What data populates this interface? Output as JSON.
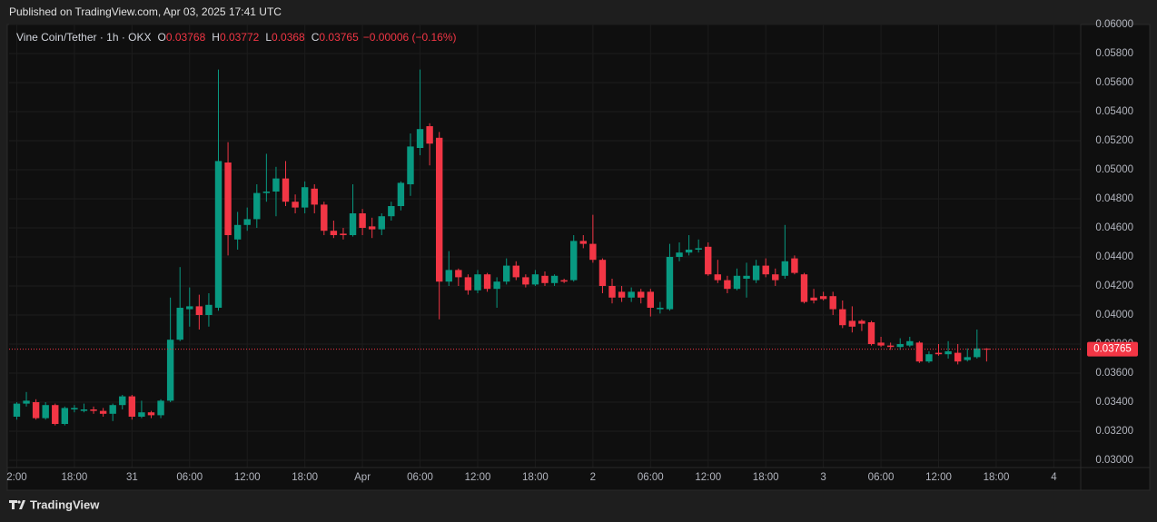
{
  "published": "Published on TradingView.com, Apr 03, 2025 17:41 UTC",
  "brand": "TradingView",
  "chart_data": {
    "type": "candlestick",
    "header": {
      "symbol": "Vine Coin/Tether · 1h · OKX",
      "fields": [
        {
          "label": "O",
          "value": 0.03768
        },
        {
          "label": "H",
          "value": 0.03772
        },
        {
          "label": "L",
          "value": 0.0368
        },
        {
          "label": "C",
          "value": 0.03765
        }
      ],
      "change": "−0.00006 (−0.16%)"
    },
    "up_color": "#089981",
    "down_color": "#f23645",
    "x": [
      0,
      1,
      2,
      3,
      4,
      5,
      6,
      7,
      8,
      9,
      10,
      11,
      12,
      13,
      14,
      15,
      16,
      17,
      18,
      19,
      20,
      21,
      22,
      23,
      24,
      25,
      26,
      27,
      28,
      29,
      30,
      31,
      32,
      33,
      34,
      35,
      36,
      37,
      38,
      39,
      40,
      41,
      42,
      43,
      44,
      45,
      46,
      47,
      48,
      49,
      50,
      51,
      52,
      53,
      54,
      55,
      56,
      57,
      58,
      59,
      60,
      61,
      62,
      63,
      64,
      65,
      66,
      67,
      68,
      69,
      70,
      71,
      72,
      73,
      74,
      75,
      76,
      77,
      78,
      79,
      80,
      81,
      82,
      83,
      84,
      85,
      86,
      87,
      88,
      89,
      90,
      91,
      92,
      93,
      94,
      95,
      96,
      97,
      98,
      99,
      100,
      101
    ],
    "open": [
      0.033,
      0.0339,
      0.034,
      0.0329,
      0.0338,
      0.0325,
      0.0335,
      0.0334,
      0.0335,
      0.0334,
      0.0332,
      0.0338,
      0.0344,
      0.033,
      0.0333,
      0.0331,
      0.0341,
      0.0383,
      0.0404,
      0.0406,
      0.04,
      0.0405,
      0.0505,
      0.0452,
      0.0462,
      0.0466,
      0.0484,
      0.0485,
      0.0494,
      0.0478,
      0.0474,
      0.0487,
      0.0476,
      0.0458,
      0.0456,
      0.0455,
      0.047,
      0.0461,
      0.0459,
      0.0468,
      0.0475,
      0.049,
      0.0515,
      0.053,
      0.0522,
      0.0423,
      0.0431,
      0.0426,
      0.0417,
      0.0428,
      0.0418,
      0.0423,
      0.0434,
      0.0426,
      0.0421,
      0.0427,
      0.0422,
      0.0424,
      0.0424,
      0.0451,
      0.0449,
      0.0438,
      0.042,
      0.0416,
      0.0412,
      0.0416,
      0.0416,
      0.0404,
      0.0404,
      0.044,
      0.0443,
      0.0445,
      0.0447,
      0.0428,
      0.0424,
      0.0418,
      0.0425,
      0.0424,
      0.0434,
      0.0428,
      0.0427,
      0.0439,
      0.0428,
      0.0412,
      0.0413,
      0.0413,
      0.0404,
      0.0396,
      0.0396,
      0.0395,
      0.0381,
      0.0379,
      0.0378,
      0.0379,
      0.0381,
      0.0368,
      0.0374,
      0.0373,
      0.0374,
      0.0369,
      0.0371,
      0.03768
    ],
    "high": [
      0.034,
      0.0347,
      0.0342,
      0.034,
      0.0339,
      0.0337,
      0.0338,
      0.0339,
      0.0337,
      0.0336,
      0.0339,
      0.0345,
      0.0345,
      0.0341,
      0.0334,
      0.0342,
      0.0412,
      0.0433,
      0.0419,
      0.0414,
      0.0415,
      0.0569,
      0.0519,
      0.0471,
      0.0474,
      0.049,
      0.0511,
      0.0502,
      0.0506,
      0.0483,
      0.0492,
      0.049,
      0.0478,
      0.0465,
      0.046,
      0.049,
      0.0473,
      0.0467,
      0.047,
      0.0478,
      0.0492,
      0.0525,
      0.0569,
      0.0532,
      0.0526,
      0.0444,
      0.0432,
      0.0428,
      0.0431,
      0.0429,
      0.0426,
      0.0439,
      0.0437,
      0.0428,
      0.0431,
      0.043,
      0.0428,
      0.0425,
      0.0455,
      0.0455,
      0.0469,
      0.0439,
      0.0425,
      0.042,
      0.0419,
      0.0418,
      0.0418,
      0.0409,
      0.0449,
      0.045,
      0.0455,
      0.0452,
      0.045,
      0.0438,
      0.0427,
      0.0432,
      0.0436,
      0.0438,
      0.0439,
      0.0432,
      0.0462,
      0.0441,
      0.0429,
      0.0418,
      0.0416,
      0.0416,
      0.041,
      0.0406,
      0.0397,
      0.0396,
      0.0385,
      0.0381,
      0.0384,
      0.0385,
      0.0382,
      0.0375,
      0.038,
      0.0382,
      0.038,
      0.0377,
      0.039,
      0.03772
    ],
    "low": [
      0.0328,
      0.0337,
      0.0328,
      0.0328,
      0.0324,
      0.0324,
      0.0333,
      0.0333,
      0.0332,
      0.033,
      0.0327,
      0.0335,
      0.0328,
      0.0329,
      0.0329,
      0.0329,
      0.034,
      0.0382,
      0.0392,
      0.039,
      0.0392,
      0.0403,
      0.0441,
      0.0445,
      0.0458,
      0.046,
      0.0478,
      0.0468,
      0.0475,
      0.047,
      0.047,
      0.047,
      0.0455,
      0.0453,
      0.0452,
      0.0454,
      0.0455,
      0.0453,
      0.0455,
      0.0465,
      0.0472,
      0.0482,
      0.051,
      0.0503,
      0.0397,
      0.042,
      0.042,
      0.0414,
      0.0415,
      0.0416,
      0.0405,
      0.0421,
      0.0424,
      0.0419,
      0.042,
      0.042,
      0.042,
      0.0422,
      0.0423,
      0.0446,
      0.0436,
      0.0415,
      0.0408,
      0.0409,
      0.0409,
      0.0408,
      0.0399,
      0.0401,
      0.0403,
      0.0437,
      0.0441,
      0.0443,
      0.0427,
      0.0422,
      0.0415,
      0.0417,
      0.0412,
      0.0422,
      0.0426,
      0.042,
      0.0425,
      0.0428,
      0.0408,
      0.0408,
      0.041,
      0.04,
      0.0391,
      0.0388,
      0.0389,
      0.0379,
      0.0378,
      0.0376,
      0.0376,
      0.0378,
      0.0367,
      0.0367,
      0.0372,
      0.037,
      0.0366,
      0.0368,
      0.037,
      0.0368
    ],
    "close": [
      0.0339,
      0.0341,
      0.0329,
      0.0338,
      0.0325,
      0.0336,
      0.0336,
      0.0335,
      0.0334,
      0.0332,
      0.0338,
      0.0344,
      0.033,
      0.0333,
      0.0331,
      0.0341,
      0.0383,
      0.0405,
      0.0406,
      0.04,
      0.0407,
      0.0506,
      0.0455,
      0.0462,
      0.0466,
      0.0484,
      0.0485,
      0.0494,
      0.0478,
      0.0474,
      0.0488,
      0.0476,
      0.0458,
      0.0455,
      0.0455,
      0.047,
      0.046,
      0.0459,
      0.0468,
      0.0475,
      0.0491,
      0.0516,
      0.0528,
      0.0518,
      0.0423,
      0.0431,
      0.0426,
      0.0417,
      0.0428,
      0.0418,
      0.0423,
      0.0434,
      0.0426,
      0.0421,
      0.0428,
      0.0422,
      0.0427,
      0.0423,
      0.0451,
      0.0449,
      0.0438,
      0.042,
      0.0412,
      0.0412,
      0.0416,
      0.0412,
      0.0405,
      0.0405,
      0.044,
      0.0443,
      0.0445,
      0.0446,
      0.0428,
      0.0424,
      0.0418,
      0.0427,
      0.0427,
      0.0434,
      0.0428,
      0.0424,
      0.0437,
      0.0429,
      0.0409,
      0.041,
      0.0411,
      0.0404,
      0.0393,
      0.0392,
      0.0394,
      0.038,
      0.0379,
      0.0378,
      0.038,
      0.0382,
      0.0368,
      0.0373,
      0.0373,
      0.0375,
      0.0368,
      0.0371,
      0.0377,
      0.03765
    ],
    "last_price": {
      "value": 0.03765,
      "label": "0.03765"
    },
    "xlim": [
      -0.8,
      110.8
    ],
    "xticks": [
      {
        "value": 0,
        "label": "2:00"
      },
      {
        "value": 6,
        "label": "18:00"
      },
      {
        "value": 12,
        "label": "31"
      },
      {
        "value": 18,
        "label": "06:00"
      },
      {
        "value": 24,
        "label": "12:00"
      },
      {
        "value": 30,
        "label": "18:00"
      },
      {
        "value": 36,
        "label": "Apr"
      },
      {
        "value": 42,
        "label": "06:00"
      },
      {
        "value": 48,
        "label": "12:00"
      },
      {
        "value": 54,
        "label": "18:00"
      },
      {
        "value": 60,
        "label": "2"
      },
      {
        "value": 66,
        "label": "06:00"
      },
      {
        "value": 72,
        "label": "12:00"
      },
      {
        "value": 78,
        "label": "18:00"
      },
      {
        "value": 84,
        "label": "3"
      },
      {
        "value": 90,
        "label": "06:00"
      },
      {
        "value": 96,
        "label": "12:00"
      },
      {
        "value": 102,
        "label": "18:00"
      },
      {
        "value": 108,
        "label": "4"
      }
    ],
    "ylim": [
      0.0295,
      0.06
    ],
    "yticks": [
      {
        "value": 0.03,
        "label": "0.03000"
      },
      {
        "value": 0.032,
        "label": "0.03200"
      },
      {
        "value": 0.034,
        "label": "0.03400"
      },
      {
        "value": 0.036,
        "label": "0.03600"
      },
      {
        "value": 0.038,
        "label": "0.03800"
      },
      {
        "value": 0.04,
        "label": "0.04000"
      },
      {
        "value": 0.042,
        "label": "0.04200"
      },
      {
        "value": 0.044,
        "label": "0.04400"
      },
      {
        "value": 0.046,
        "label": "0.04600"
      },
      {
        "value": 0.048,
        "label": "0.04800"
      },
      {
        "value": 0.05,
        "label": "0.05000"
      },
      {
        "value": 0.052,
        "label": "0.05200"
      },
      {
        "value": 0.054,
        "label": "0.05400"
      },
      {
        "value": 0.056,
        "label": "0.05600"
      },
      {
        "value": 0.058,
        "label": "0.05800"
      },
      {
        "value": 0.06,
        "label": "0.06000"
      }
    ],
    "grid": true
  }
}
